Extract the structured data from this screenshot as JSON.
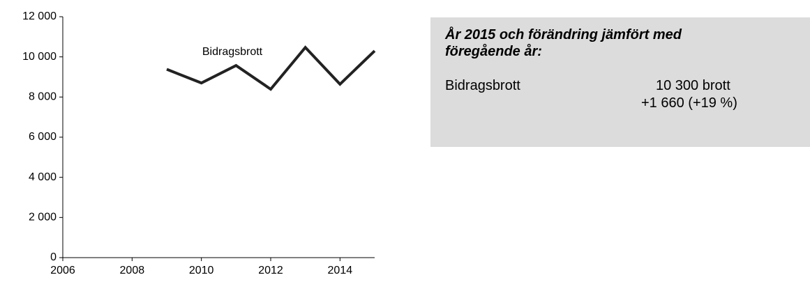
{
  "chart_data": {
    "type": "line",
    "x": [
      2009,
      2010,
      2011,
      2012,
      2013,
      2014,
      2015
    ],
    "series": [
      {
        "name": "Bidragsbrott",
        "color": "#222222",
        "values": [
          9380,
          8700,
          9570,
          8390,
          10470,
          8640,
          10300
        ]
      }
    ],
    "xlim": [
      2006,
      2015
    ],
    "xticks": [
      2006,
      2008,
      2010,
      2012,
      2014
    ],
    "ylim": [
      0,
      12000
    ],
    "yticks": [
      0,
      {
        "value": 2000,
        "label": "2 000"
      },
      {
        "value": 4000,
        "label": "4 000"
      },
      {
        "value": 6000,
        "label": "6 000"
      },
      {
        "value": 8000,
        "label": "8 000"
      },
      {
        "value": 10000,
        "label": "10 000"
      },
      {
        "value": 12000,
        "label": "12 000"
      }
    ],
    "grid": false
  },
  "info_box": {
    "title_lines": [
      "År 2015 och förändring jämfört med",
      "föregående år:"
    ],
    "rows": [
      {
        "label": "Bidragsbrott",
        "value": "10 300 brott",
        "change": "+1 660 (+19 %)"
      }
    ]
  }
}
